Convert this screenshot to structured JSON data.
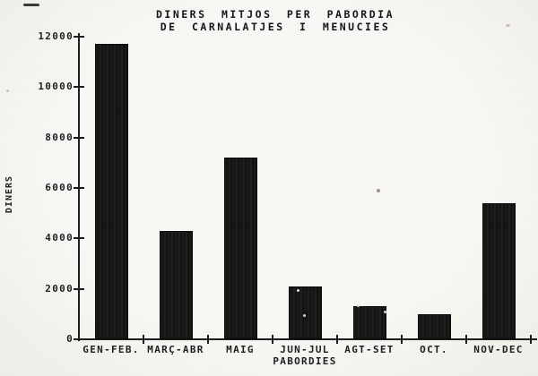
{
  "title": {
    "line1": "DINERS MITJOS PER PABORDIA",
    "line2": "DE CARNALATJES I MENUCIES"
  },
  "axes": {
    "y_label": "DINERS",
    "x_label": "PABORDIES"
  },
  "chart_data": {
    "type": "bar",
    "title": "DINERS MITJOS PER PABORDIA DE CARNALATJES I MENUCIES",
    "categories": [
      "GEN-FEB.",
      "MARÇ-ABR",
      "MAIG",
      "JUN-JUL",
      "AGT-SET",
      "OCT.",
      "NOV-DEC"
    ],
    "values": [
      11700,
      4300,
      7200,
      2100,
      1300,
      1000,
      5400
    ],
    "xlabel": "PABORDIES",
    "ylabel": "DINERS",
    "ylim": [
      0,
      12000
    ],
    "yticks": [
      0,
      2000,
      4000,
      6000,
      8000,
      10000,
      12000
    ],
    "grid": false,
    "legend": false,
    "bar_color": "#111111",
    "text_color": "#1a1a1a",
    "background": "#f6f4f0"
  }
}
